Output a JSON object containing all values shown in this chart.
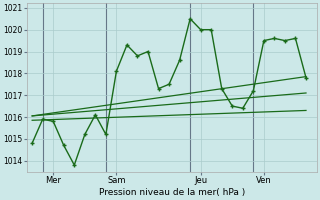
{
  "xlabel": "Pression niveau de la mer( hPa )",
  "background_color": "#cce8e8",
  "grid_color": "#aacccc",
  "line_color": "#1a6b1a",
  "vline_color": "#667788",
  "ylim": [
    1013.5,
    1021.2
  ],
  "yticks": [
    1014,
    1015,
    1016,
    1017,
    1018,
    1019,
    1020,
    1021
  ],
  "xtick_labels": [
    "Mer",
    "Sam",
    "Jeu",
    "Ven"
  ],
  "xtick_positions": [
    2,
    8,
    16,
    22
  ],
  "vline_positions": [
    1,
    7,
    15,
    21
  ],
  "series1_x": [
    0,
    1,
    2,
    3,
    4,
    5,
    6,
    7,
    8,
    9,
    10,
    11,
    12,
    13,
    14,
    15,
    16,
    17,
    18,
    19,
    20,
    21,
    22,
    23,
    24,
    25,
    26
  ],
  "series1_y": [
    1014.8,
    1015.9,
    1015.8,
    1014.7,
    1013.8,
    1015.2,
    1016.1,
    1015.2,
    1018.1,
    1019.3,
    1018.8,
    1019.0,
    1017.3,
    1017.5,
    1018.6,
    1020.5,
    1020.0,
    1020.0,
    1017.3,
    1016.5,
    1016.4,
    1017.2,
    1019.5,
    1019.6,
    1019.5,
    1019.6,
    1017.8
  ],
  "xlim": [
    -0.5,
    27
  ],
  "trend_lines": [
    {
      "x": [
        0,
        26
      ],
      "y": [
        1016.05,
        1017.85
      ]
    },
    {
      "x": [
        0,
        26
      ],
      "y": [
        1015.85,
        1016.3
      ]
    },
    {
      "x": [
        0,
        26
      ],
      "y": [
        1016.05,
        1017.1
      ]
    }
  ]
}
